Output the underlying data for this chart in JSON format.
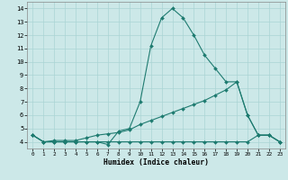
{
  "xlabel": "Humidex (Indice chaleur)",
  "x": [
    0,
    1,
    2,
    3,
    4,
    5,
    6,
    7,
    8,
    9,
    10,
    11,
    12,
    13,
    14,
    15,
    16,
    17,
    18,
    19,
    20,
    21,
    22,
    23
  ],
  "line1": [
    4.5,
    4.0,
    4.0,
    4.0,
    4.0,
    4.0,
    4.0,
    3.8,
    4.8,
    5.0,
    7.0,
    11.2,
    13.3,
    14.0,
    13.3,
    12.0,
    10.5,
    9.5,
    8.5,
    8.5,
    6.0,
    4.5,
    4.5,
    4.0
  ],
  "line2": [
    4.5,
    4.0,
    4.1,
    4.1,
    4.1,
    4.3,
    4.5,
    4.6,
    4.7,
    4.9,
    5.3,
    5.6,
    5.9,
    6.2,
    6.5,
    6.8,
    7.1,
    7.5,
    7.9,
    8.5,
    6.0,
    4.5,
    4.5,
    4.0
  ],
  "line3": [
    4.5,
    4.0,
    4.0,
    4.0,
    4.0,
    4.0,
    4.0,
    4.0,
    4.0,
    4.0,
    4.0,
    4.0,
    4.0,
    4.0,
    4.0,
    4.0,
    4.0,
    4.0,
    4.0,
    4.0,
    4.0,
    4.5,
    4.5,
    4.0
  ],
  "line_color": "#1e7b70",
  "bg_color": "#cce8e8",
  "grid_color": "#aad4d4",
  "ylim": [
    3.5,
    14.5
  ],
  "xlim": [
    -0.5,
    23.5
  ],
  "yticks": [
    4,
    5,
    6,
    7,
    8,
    9,
    10,
    11,
    12,
    13,
    14
  ],
  "xticks": [
    0,
    1,
    2,
    3,
    4,
    5,
    6,
    7,
    8,
    9,
    10,
    11,
    12,
    13,
    14,
    15,
    16,
    17,
    18,
    19,
    20,
    21,
    22,
    23
  ]
}
